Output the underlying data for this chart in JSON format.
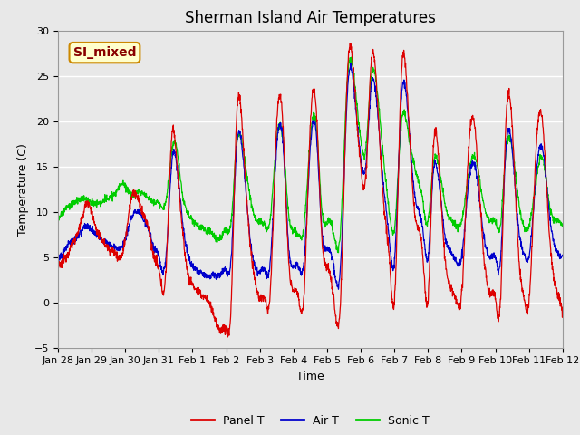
{
  "title": "Sherman Island Air Temperatures",
  "xlabel": "Time",
  "ylabel": "Temperature (C)",
  "ylim": [
    -5,
    30
  ],
  "yticks": [
    -5,
    0,
    5,
    10,
    15,
    20,
    25,
    30
  ],
  "xtick_labels": [
    "Jan 28",
    "Jan 29",
    "Jan 30",
    "Jan 31",
    "Feb 1",
    "Feb 2",
    "Feb 3",
    "Feb 4",
    "Feb 5",
    "Feb 6",
    "Feb 7",
    "Feb 8",
    "Feb 9",
    "Feb 10",
    "Feb 11",
    "Feb 12"
  ],
  "legend_labels": [
    "Panel T",
    "Air T",
    "Sonic T"
  ],
  "panel_color": "#dd0000",
  "air_color": "#0000cc",
  "sonic_color": "#00cc00",
  "annotation_text": "SI_mixed",
  "annotation_bg": "#ffffcc",
  "annotation_border": "#cc8800",
  "annotation_text_color": "#880000",
  "plot_bg_color": "#e8e8e8",
  "fig_bg_color": "#e8e8e8",
  "title_fontsize": 12,
  "axis_fontsize": 9,
  "tick_fontsize": 8,
  "legend_fontsize": 9,
  "knots_t": [
    0,
    0.15,
    0.3,
    0.5,
    0.7,
    0.85,
    1.0,
    1.15,
    1.3,
    1.5,
    1.7,
    1.85,
    2.0,
    2.15,
    2.3,
    2.5,
    2.7,
    2.85,
    3.0,
    3.2,
    3.4,
    3.5,
    3.7,
    3.85,
    4.0,
    4.2,
    4.4,
    4.6,
    4.8,
    5.0,
    5.15,
    5.3,
    5.5,
    5.7,
    5.85,
    6.0,
    6.15,
    6.3,
    6.5,
    6.7,
    6.85,
    7.0,
    7.15,
    7.3,
    7.5,
    7.7,
    7.85,
    8.0,
    8.2,
    8.4,
    8.6,
    8.85,
    9.0,
    9.15,
    9.3,
    9.5,
    9.7,
    9.85,
    10.0,
    10.2,
    10.4,
    10.6,
    10.85,
    11.0,
    11.15,
    11.3,
    11.5,
    11.7,
    11.85,
    12.0,
    12.2,
    12.4,
    12.6,
    12.85,
    13.0,
    13.15,
    13.3,
    13.5,
    13.7,
    13.85,
    14.0,
    14.2,
    14.4,
    14.6,
    14.85,
    15.0
  ],
  "knots_v_panel": [
    4,
    4.5,
    5.5,
    7,
    9,
    11,
    10,
    8,
    7,
    6,
    5.5,
    5,
    7,
    11,
    12,
    10,
    8,
    5,
    3.5,
    3,
    19,
    17,
    8,
    3.5,
    2,
    1,
    0.5,
    -1,
    -3,
    -3,
    0,
    19.5,
    18,
    7,
    2.5,
    0.5,
    0.3,
    0.5,
    19.5,
    18.5,
    5,
    1.5,
    0.5,
    0.2,
    19.5,
    19.8,
    7,
    4,
    0.3,
    0.2,
    25,
    22,
    15,
    14,
    26,
    22,
    10,
    5,
    0.1,
    24.5,
    22,
    10,
    5,
    0.3,
    16.5,
    16.5,
    5,
    1.5,
    0,
    1,
    16.5,
    19,
    8,
    1,
    0.5,
    0,
    18.5,
    19.5,
    5,
    0.5,
    0,
    16,
    20,
    8,
    1,
    -1
  ],
  "knots_v_air": [
    5,
    5.5,
    6.5,
    7,
    8,
    8.5,
    8,
    7.5,
    7,
    6.5,
    6,
    6,
    7,
    9,
    10,
    9.5,
    8,
    6,
    5,
    4.5,
    16,
    16,
    9,
    5.5,
    4,
    3.5,
    3,
    3,
    3,
    3.5,
    5,
    16.5,
    16,
    7.5,
    4,
    3.5,
    3.5,
    4,
    17,
    17,
    6.5,
    4,
    4,
    4,
    17,
    17.5,
    7.5,
    6,
    4,
    4,
    23,
    21.5,
    16,
    15,
    23.5,
    21,
    12,
    7,
    4.5,
    22,
    21,
    12,
    8,
    5,
    14,
    14,
    7.5,
    5.5,
    4.5,
    5,
    13,
    15,
    9,
    5,
    5,
    4.5,
    16,
    17,
    8,
    5.5,
    5,
    13.5,
    17,
    10,
    5.5,
    5
  ],
  "knots_v_sonic": [
    9,
    10,
    10.5,
    11,
    11.5,
    11.5,
    11,
    11,
    11,
    11.5,
    12,
    13,
    13,
    12,
    12,
    12,
    11.5,
    11,
    11,
    11,
    17,
    17.5,
    12,
    10,
    9,
    8.5,
    8,
    7.5,
    7,
    8,
    9,
    17,
    17,
    12,
    9.5,
    9,
    8.5,
    9,
    18,
    17.5,
    10,
    8,
    7.5,
    8,
    18,
    18.5,
    10,
    9,
    7.5,
    8,
    24.5,
    23,
    18,
    17,
    24.5,
    23,
    15,
    10,
    8,
    19.5,
    19,
    15,
    11,
    9,
    15,
    15.5,
    11,
    9,
    8.5,
    9,
    14,
    16,
    12,
    9,
    9,
    8.5,
    16,
    17,
    11,
    8.5,
    8.5,
    13,
    16,
    11,
    9,
    8.5
  ]
}
